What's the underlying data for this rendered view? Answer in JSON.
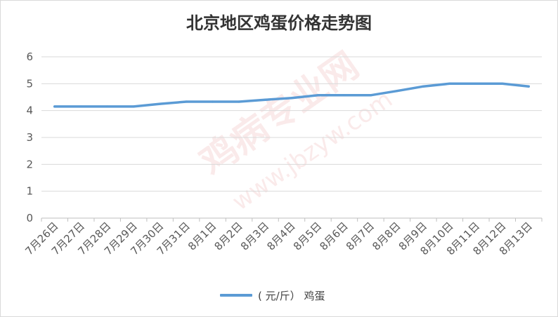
{
  "chart_data": {
    "type": "line",
    "title": "北京地区鸡蛋价格走势图",
    "categories": [
      "7月26日",
      "7月27日",
      "7月28日",
      "7月29日",
      "7月30日",
      "7月31日",
      "8月1日",
      "8月2日",
      "8月3日",
      "8月4日",
      "8月5日",
      "8月6日",
      "8月7日",
      "8月8日",
      "8月9日",
      "8月10日",
      "8月11日",
      "8月12日",
      "8月13日"
    ],
    "series": [
      {
        "name": "( 元/斤） 鸡蛋",
        "color": "#5b9bd5",
        "values": [
          4.15,
          4.15,
          4.15,
          4.15,
          4.25,
          4.33,
          4.33,
          4.33,
          4.4,
          4.47,
          4.57,
          4.57,
          4.57,
          4.73,
          4.9,
          5.0,
          5.0,
          5.0,
          4.9
        ]
      }
    ],
    "ylim": [
      0,
      6
    ],
    "yticks": [
      0,
      1,
      2,
      3,
      4,
      5,
      6
    ],
    "grid": true,
    "legend_position": "bottom"
  },
  "watermark": {
    "text1": "鸡病专业网",
    "text2": "www.jbzyw.com"
  }
}
